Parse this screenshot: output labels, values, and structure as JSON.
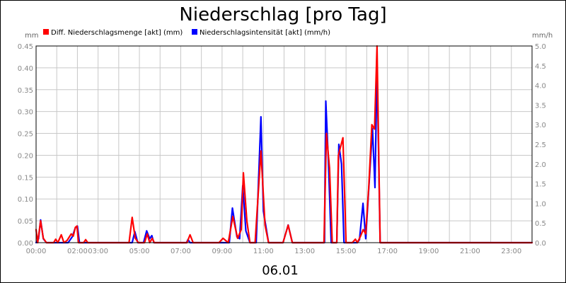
{
  "chart_data": {
    "type": "line",
    "title": "Niederschlag [pro Tag]",
    "xlabel": "06.01",
    "y_left_unit": "mm",
    "y_right_unit": "mm/h",
    "y_left_lim": [
      0,
      0.45
    ],
    "y_right_lim": [
      0,
      5.0
    ],
    "y_left_ticks": [
      "0.00",
      "0.05",
      "0.10",
      "0.15",
      "0.20",
      "0.25",
      "0.30",
      "0.35",
      "0.40",
      "0.45"
    ],
    "y_right_ticks": [
      "0.0",
      "0.5",
      "1.0",
      "1.5",
      "2.0",
      "2.5",
      "3.0",
      "3.5",
      "4.0",
      "4.5",
      "5.0"
    ],
    "x_lim_hours": [
      0,
      24
    ],
    "x_ticks": [
      {
        "label": "00:00",
        "hour": 0
      },
      {
        "label": "02:00",
        "hour": 2
      },
      {
        "label": "03:00",
        "hour": 3
      },
      {
        "label": "05:00",
        "hour": 5
      },
      {
        "label": "07:00",
        "hour": 7
      },
      {
        "label": "09:00",
        "hour": 9
      },
      {
        "label": "11:00",
        "hour": 11
      },
      {
        "label": "13:00",
        "hour": 13
      },
      {
        "label": "15:00",
        "hour": 15
      },
      {
        "label": "17:00",
        "hour": 17
      },
      {
        "label": "19:00",
        "hour": 19
      },
      {
        "label": "21:00",
        "hour": 21
      },
      {
        "label": "23:00",
        "hour": 23
      }
    ],
    "grid": true,
    "legend_position": "top-left",
    "series": [
      {
        "name": "Diff. Niederschlagsmenge [akt] (mm)",
        "color": "#ff0000",
        "axis": "left",
        "points": [
          [
            0.0,
            0.03
          ],
          [
            0.08,
            0.0
          ],
          [
            0.22,
            0.05
          ],
          [
            0.35,
            0.01
          ],
          [
            0.5,
            0.0
          ],
          [
            0.85,
            0.0
          ],
          [
            0.95,
            0.008
          ],
          [
            1.05,
            0.0
          ],
          [
            1.22,
            0.018
          ],
          [
            1.35,
            0.0
          ],
          [
            1.5,
            0.005
          ],
          [
            1.7,
            0.02
          ],
          [
            1.8,
            0.015
          ],
          [
            1.9,
            0.035
          ],
          [
            1.98,
            0.038
          ],
          [
            2.05,
            0.0
          ],
          [
            2.3,
            0.0
          ],
          [
            2.4,
            0.007
          ],
          [
            2.5,
            0.0
          ],
          [
            4.5,
            0.0
          ],
          [
            4.65,
            0.058
          ],
          [
            4.8,
            0.01
          ],
          [
            4.95,
            0.0
          ],
          [
            5.25,
            0.0
          ],
          [
            5.38,
            0.02
          ],
          [
            5.5,
            0.0
          ],
          [
            5.62,
            0.01
          ],
          [
            5.72,
            0.0
          ],
          [
            7.3,
            0.0
          ],
          [
            7.45,
            0.018
          ],
          [
            7.6,
            0.0
          ],
          [
            8.85,
            0.0
          ],
          [
            9.05,
            0.01
          ],
          [
            9.3,
            0.0
          ],
          [
            9.52,
            0.06
          ],
          [
            9.75,
            0.01
          ],
          [
            9.93,
            0.03
          ],
          [
            10.03,
            0.16
          ],
          [
            10.2,
            0.05
          ],
          [
            10.35,
            0.0
          ],
          [
            10.6,
            0.0
          ],
          [
            10.88,
            0.21
          ],
          [
            11.08,
            0.04
          ],
          [
            11.25,
            0.0
          ],
          [
            11.95,
            0.0
          ],
          [
            12.2,
            0.04
          ],
          [
            12.4,
            0.0
          ],
          [
            13.93,
            0.0
          ],
          [
            14.05,
            0.25
          ],
          [
            14.2,
            0.17
          ],
          [
            14.33,
            0.0
          ],
          [
            14.55,
            0.0
          ],
          [
            14.63,
            0.2
          ],
          [
            14.85,
            0.24
          ],
          [
            15.0,
            0.0
          ],
          [
            15.3,
            0.0
          ],
          [
            15.45,
            0.008
          ],
          [
            15.55,
            0.0
          ],
          [
            15.7,
            0.015
          ],
          [
            15.83,
            0.03
          ],
          [
            15.95,
            0.02
          ],
          [
            16.1,
            0.13
          ],
          [
            16.25,
            0.27
          ],
          [
            16.38,
            0.26
          ],
          [
            16.5,
            0.45
          ],
          [
            16.65,
            0.0
          ],
          [
            24.0,
            0.0
          ]
        ]
      },
      {
        "name": "Niederschlagsintensität [akt] (mm/h)",
        "color": "#0000ff",
        "axis": "right",
        "points": [
          [
            0.0,
            0.0
          ],
          [
            0.12,
            0.1
          ],
          [
            0.22,
            0.58
          ],
          [
            0.35,
            0.1
          ],
          [
            0.5,
            0.0
          ],
          [
            1.55,
            0.0
          ],
          [
            1.75,
            0.15
          ],
          [
            1.9,
            0.38
          ],
          [
            2.0,
            0.42
          ],
          [
            2.1,
            0.0
          ],
          [
            4.65,
            0.0
          ],
          [
            4.78,
            0.28
          ],
          [
            4.92,
            0.0
          ],
          [
            5.2,
            0.0
          ],
          [
            5.35,
            0.3
          ],
          [
            5.5,
            0.1
          ],
          [
            5.6,
            0.18
          ],
          [
            5.7,
            0.0
          ],
          [
            7.28,
            0.0
          ],
          [
            7.35,
            0.08
          ],
          [
            7.45,
            0.0
          ],
          [
            9.35,
            0.0
          ],
          [
            9.5,
            0.88
          ],
          [
            9.72,
            0.15
          ],
          [
            9.85,
            0.1
          ],
          [
            10.0,
            1.45
          ],
          [
            10.15,
            0.3
          ],
          [
            10.35,
            0.0
          ],
          [
            10.65,
            0.0
          ],
          [
            10.88,
            3.2
          ],
          [
            11.0,
            0.8
          ],
          [
            11.25,
            0.0
          ],
          [
            11.95,
            0.0
          ],
          [
            12.2,
            0.45
          ],
          [
            12.4,
            0.0
          ],
          [
            13.95,
            0.0
          ],
          [
            14.02,
            3.6
          ],
          [
            14.15,
            2.0
          ],
          [
            14.28,
            0.0
          ],
          [
            14.55,
            0.0
          ],
          [
            14.65,
            2.5
          ],
          [
            14.78,
            2.0
          ],
          [
            14.9,
            0.0
          ],
          [
            15.55,
            0.0
          ],
          [
            15.65,
            0.08
          ],
          [
            15.82,
            1.0
          ],
          [
            15.95,
            0.1
          ],
          [
            16.15,
            1.8
          ],
          [
            16.28,
            2.9
          ],
          [
            16.4,
            1.4
          ],
          [
            16.5,
            4.5
          ],
          [
            16.65,
            0.0
          ],
          [
            24.0,
            0.0
          ]
        ]
      }
    ]
  }
}
